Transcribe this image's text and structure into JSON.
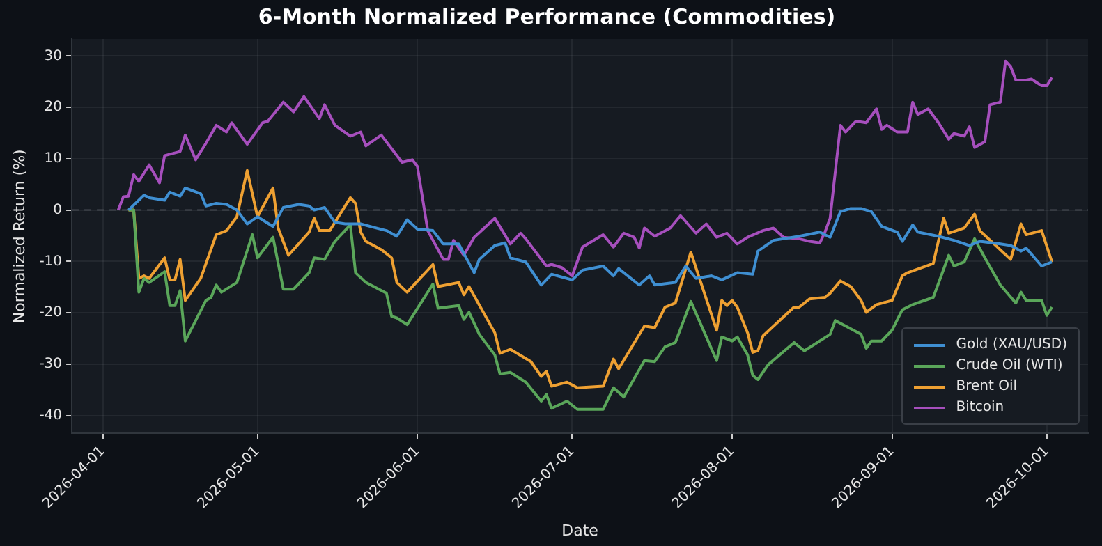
{
  "chart_data": {
    "type": "line",
    "title": "6-Month Normalized Performance (Commodities)",
    "xlabel": "Date",
    "ylabel": "Normalized Return (%)",
    "xlim": [
      "2026-03-26",
      "2026-10-09"
    ],
    "xticks": [
      "2026-04-01",
      "2026-05-01",
      "2026-06-01",
      "2026-07-01",
      "2026-08-01",
      "2026-09-01",
      "2026-10-01"
    ],
    "ylim": [
      -43.5,
      33.3
    ],
    "yticks": [
      -40,
      -30,
      -20,
      -10,
      0,
      10,
      20,
      30
    ],
    "grid": true,
    "legend": "bottom right",
    "ref_lines": [
      {
        "axis": "y",
        "value": 0,
        "color": "#4a4f57",
        "line_style": "dashed"
      }
    ],
    "series": [
      {
        "name": "Gold (XAU/USD)",
        "color": "#3f8fd2",
        "x": [
          "2026-04-06",
          "2026-04-09",
          "2026-04-10",
          "2026-04-13",
          "2026-04-14",
          "2026-04-16",
          "2026-04-17",
          "2026-04-20",
          "2026-04-21",
          "2026-04-23",
          "2026-04-25",
          "2026-04-27",
          "2026-04-29",
          "2026-05-01",
          "2026-05-04",
          "2026-05-06",
          "2026-05-09",
          "2026-05-11",
          "2026-05-12",
          "2026-05-14",
          "2026-05-16",
          "2026-05-18",
          "2026-05-21",
          "2026-05-24",
          "2026-05-26",
          "2026-05-28",
          "2026-05-30",
          "2026-06-01",
          "2026-06-04",
          "2026-06-06",
          "2026-06-09",
          "2026-06-12",
          "2026-06-13",
          "2026-06-16",
          "2026-06-18",
          "2026-06-19",
          "2026-06-22",
          "2026-06-25",
          "2026-06-27",
          "2026-07-01",
          "2026-07-03",
          "2026-07-07",
          "2026-07-09",
          "2026-07-10",
          "2026-07-14",
          "2026-07-16",
          "2026-07-17",
          "2026-07-21",
          "2026-07-23",
          "2026-07-25",
          "2026-07-28",
          "2026-07-30",
          "2026-08-02",
          "2026-08-05",
          "2026-08-06",
          "2026-08-09",
          "2026-08-14",
          "2026-08-18",
          "2026-08-20",
          "2026-08-22",
          "2026-08-24",
          "2026-08-26",
          "2026-08-28",
          "2026-08-30",
          "2026-09-02",
          "2026-09-03",
          "2026-09-05",
          "2026-09-06",
          "2026-09-10",
          "2026-09-13",
          "2026-09-16",
          "2026-09-18",
          "2026-09-22",
          "2026-09-24",
          "2026-09-26",
          "2026-09-27",
          "2026-09-30",
          "2026-10-02"
        ],
        "values": [
          0,
          2.9,
          2.4,
          1.9,
          3.5,
          2.7,
          4.3,
          3.2,
          0.8,
          1.3,
          1.1,
          0,
          -2.7,
          -1.3,
          -3.2,
          0.5,
          1.1,
          0.8,
          0,
          0.5,
          -2.4,
          -2.7,
          -2.7,
          -3.5,
          -4,
          -5.1,
          -1.9,
          -3.7,
          -4,
          -6.6,
          -6.6,
          -12.2,
          -9.6,
          -6.9,
          -6.4,
          -9.3,
          -10.1,
          -14.6,
          -12.5,
          -13.6,
          -11.7,
          -10.9,
          -12.8,
          -11.4,
          -14.6,
          -12.8,
          -14.6,
          -14.1,
          -10.9,
          -13.3,
          -12.8,
          -13.6,
          -12.2,
          -12.5,
          -8,
          -5.9,
          -5.1,
          -4.3,
          -5.3,
          -0.3,
          0.3,
          0.3,
          -0.3,
          -3.2,
          -4.3,
          -6.1,
          -2.9,
          -4.3,
          -5.1,
          -5.9,
          -6.9,
          -6.1,
          -6.6,
          -6.9,
          -8,
          -7.4,
          -10.9,
          -10.1
        ]
      },
      {
        "name": "Crude Oil (WTI)",
        "color": "#5aa65a",
        "x": [
          "2026-04-06",
          "2026-04-07",
          "2026-04-08",
          "2026-04-09",
          "2026-04-10",
          "2026-04-13",
          "2026-04-14",
          "2026-04-15",
          "2026-04-16",
          "2026-04-17",
          "2026-04-21",
          "2026-04-22",
          "2026-04-23",
          "2026-04-24",
          "2026-04-27",
          "2026-04-30",
          "2026-05-01",
          "2026-05-04",
          "2026-05-06",
          "2026-05-08",
          "2026-05-11",
          "2026-05-12",
          "2026-05-14",
          "2026-05-16",
          "2026-05-19",
          "2026-05-20",
          "2026-05-22",
          "2026-05-26",
          "2026-05-27",
          "2026-05-28",
          "2026-05-30",
          "2026-06-04",
          "2026-06-05",
          "2026-06-09",
          "2026-06-10",
          "2026-06-11",
          "2026-06-13",
          "2026-06-16",
          "2026-06-17",
          "2026-06-19",
          "2026-06-22",
          "2026-06-25",
          "2026-06-26",
          "2026-06-27",
          "2026-06-30",
          "2026-07-02",
          "2026-07-07",
          "2026-07-09",
          "2026-07-11",
          "2026-07-15",
          "2026-07-17",
          "2026-07-19",
          "2026-07-21",
          "2026-07-24",
          "2026-07-29",
          "2026-07-30",
          "2026-08-01",
          "2026-08-02",
          "2026-08-04",
          "2026-08-05",
          "2026-08-06",
          "2026-08-08",
          "2026-08-13",
          "2026-08-15",
          "2026-08-20",
          "2026-08-21",
          "2026-08-26",
          "2026-08-27",
          "2026-08-28",
          "2026-08-30",
          "2026-09-01",
          "2026-09-03",
          "2026-09-05",
          "2026-09-09",
          "2026-09-12",
          "2026-09-13",
          "2026-09-15",
          "2026-09-17",
          "2026-09-19",
          "2026-09-22",
          "2026-09-25",
          "2026-09-26",
          "2026-09-27",
          "2026-09-30",
          "2026-10-01",
          "2026-10-02"
        ],
        "values": [
          0,
          0,
          -16,
          -13.3,
          -14.1,
          -12,
          -18.6,
          -18.6,
          -15.7,
          -25.5,
          -17.6,
          -17,
          -14.6,
          -16,
          -14.1,
          -4.8,
          -9.3,
          -5.3,
          -15.4,
          -15.4,
          -12.2,
          -9.3,
          -9.6,
          -6.1,
          -2.9,
          -12.2,
          -14.1,
          -16.2,
          -20.7,
          -21,
          -22.3,
          -14.4,
          -19.1,
          -18.6,
          -21.3,
          -19.9,
          -24.2,
          -28.2,
          -31.9,
          -31.6,
          -33.5,
          -37.2,
          -35.9,
          -38.6,
          -37.2,
          -38.8,
          -38.8,
          -34.6,
          -36.4,
          -29.3,
          -29.5,
          -26.6,
          -25.8,
          -17.8,
          -29.3,
          -24.7,
          -25.5,
          -24.7,
          -28.2,
          -32.2,
          -33,
          -30.1,
          -25.8,
          -27.4,
          -24.2,
          -21.5,
          -24.2,
          -26.9,
          -25.5,
          -25.5,
          -23.4,
          -19.4,
          -18.4,
          -17,
          -8.8,
          -10.9,
          -10.1,
          -5.6,
          -9.3,
          -14.6,
          -18.1,
          -16,
          -17.6,
          -17.6,
          -20.5,
          -18.9
        ]
      },
      {
        "name": "Brent Oil",
        "color": "#eea032",
        "x": [
          "2026-04-06",
          "2026-04-07",
          "2026-04-08",
          "2026-04-09",
          "2026-04-10",
          "2026-04-13",
          "2026-04-14",
          "2026-04-15",
          "2026-04-16",
          "2026-04-17",
          "2026-04-20",
          "2026-04-23",
          "2026-04-25",
          "2026-04-27",
          "2026-04-29",
          "2026-05-01",
          "2026-05-04",
          "2026-05-05",
          "2026-05-07",
          "2026-05-11",
          "2026-05-12",
          "2026-05-13",
          "2026-05-15",
          "2026-05-19",
          "2026-05-20",
          "2026-05-21",
          "2026-05-22",
          "2026-05-25",
          "2026-05-27",
          "2026-05-28",
          "2026-05-30",
          "2026-06-04",
          "2026-06-05",
          "2026-06-09",
          "2026-06-10",
          "2026-06-11",
          "2026-06-16",
          "2026-06-17",
          "2026-06-19",
          "2026-06-23",
          "2026-06-25",
          "2026-06-26",
          "2026-06-27",
          "2026-06-30",
          "2026-07-02",
          "2026-07-07",
          "2026-07-09",
          "2026-07-10",
          "2026-07-15",
          "2026-07-17",
          "2026-07-19",
          "2026-07-21",
          "2026-07-24",
          "2026-07-29",
          "2026-07-30",
          "2026-07-31",
          "2026-08-01",
          "2026-08-02",
          "2026-08-04",
          "2026-08-05",
          "2026-08-06",
          "2026-08-07",
          "2026-08-13",
          "2026-08-14",
          "2026-08-16",
          "2026-08-19",
          "2026-08-20",
          "2026-08-22",
          "2026-08-24",
          "2026-08-26",
          "2026-08-27",
          "2026-08-29",
          "2026-09-01",
          "2026-09-03",
          "2026-09-04",
          "2026-09-09",
          "2026-09-11",
          "2026-09-12",
          "2026-09-15",
          "2026-09-17",
          "2026-09-18",
          "2026-09-24",
          "2026-09-26",
          "2026-09-27",
          "2026-09-30",
          "2026-10-02"
        ],
        "values": [
          0,
          0,
          -13.3,
          -12.8,
          -13.3,
          -9.3,
          -13.6,
          -13.6,
          -9.6,
          -17.6,
          -13.3,
          -4.8,
          -4,
          -1.3,
          7.7,
          -1.3,
          4.3,
          -3.5,
          -8.8,
          -4.3,
          -1.6,
          -4,
          -4,
          2.4,
          1.3,
          -4.3,
          -6.1,
          -7.7,
          -9.3,
          -14.1,
          -16,
          -10.6,
          -14.9,
          -14.1,
          -16.5,
          -14.9,
          -23.9,
          -27.9,
          -27.1,
          -29.5,
          -32.4,
          -31.4,
          -34.3,
          -33.5,
          -34.6,
          -34.3,
          -29,
          -30.9,
          -22.6,
          -22.9,
          -18.9,
          -18.1,
          -8.2,
          -23.4,
          -17.6,
          -18.6,
          -17.6,
          -18.9,
          -23.9,
          -27.7,
          -27.4,
          -24.5,
          -18.9,
          -18.9,
          -17.3,
          -17,
          -16.2,
          -13.8,
          -14.9,
          -17.6,
          -19.9,
          -18.4,
          -17.6,
          -12.8,
          -12.2,
          -10.4,
          -1.6,
          -4.5,
          -3.5,
          -0.8,
          -4,
          -9.6,
          -2.7,
          -4.8,
          -4,
          -10.1
        ]
      },
      {
        "name": "Bitcoin",
        "color": "#a64fbd",
        "x": [
          "2026-04-04",
          "2026-04-05",
          "2026-04-06",
          "2026-04-07",
          "2026-04-08",
          "2026-04-10",
          "2026-04-12",
          "2026-04-13",
          "2026-04-16",
          "2026-04-17",
          "2026-04-19",
          "2026-04-21",
          "2026-04-23",
          "2026-04-25",
          "2026-04-26",
          "2026-04-29",
          "2026-05-02",
          "2026-05-03",
          "2026-05-06",
          "2026-05-08",
          "2026-05-10",
          "2026-05-13",
          "2026-05-14",
          "2026-05-16",
          "2026-05-19",
          "2026-05-21",
          "2026-05-22",
          "2026-05-25",
          "2026-05-29",
          "2026-05-31",
          "2026-06-01",
          "2026-06-03",
          "2026-06-06",
          "2026-06-07",
          "2026-06-08",
          "2026-06-10",
          "2026-06-12",
          "2026-06-16",
          "2026-06-19",
          "2026-06-21",
          "2026-06-22",
          "2026-06-26",
          "2026-06-27",
          "2026-06-29",
          "2026-07-01",
          "2026-07-03",
          "2026-07-07",
          "2026-07-09",
          "2026-07-11",
          "2026-07-13",
          "2026-07-14",
          "2026-07-15",
          "2026-07-17",
          "2026-07-20",
          "2026-07-22",
          "2026-07-25",
          "2026-07-27",
          "2026-07-29",
          "2026-07-31",
          "2026-08-02",
          "2026-08-04",
          "2026-08-07",
          "2026-08-09",
          "2026-08-11",
          "2026-08-14",
          "2026-08-16",
          "2026-08-18",
          "2026-08-19",
          "2026-08-20",
          "2026-08-22",
          "2026-08-23",
          "2026-08-25",
          "2026-08-27",
          "2026-08-29",
          "2026-08-30",
          "2026-08-31",
          "2026-09-02",
          "2026-09-04",
          "2026-09-05",
          "2026-09-06",
          "2026-09-08",
          "2026-09-10",
          "2026-09-12",
          "2026-09-13",
          "2026-09-15",
          "2026-09-16",
          "2026-09-17",
          "2026-09-19",
          "2026-09-20",
          "2026-09-22",
          "2026-09-23",
          "2026-09-24",
          "2026-09-25",
          "2026-09-27",
          "2026-09-28",
          "2026-09-30",
          "2026-10-01",
          "2026-10-02"
        ],
        "values": [
          0,
          2.6,
          2.7,
          6.9,
          5.6,
          8.8,
          5.3,
          10.6,
          11.4,
          14.6,
          9.8,
          13,
          16.5,
          15.2,
          17,
          12.8,
          17,
          17.3,
          21,
          19.1,
          22.1,
          17.8,
          20.5,
          16.5,
          14.4,
          15.2,
          12.5,
          14.6,
          9.3,
          9.8,
          8.5,
          -4,
          -9.6,
          -9.6,
          -5.9,
          -8.8,
          -5.3,
          -1.6,
          -6.6,
          -4.5,
          -5.6,
          -10.9,
          -10.6,
          -11.2,
          -12.8,
          -7.2,
          -4.8,
          -7.2,
          -4.5,
          -5.3,
          -7.4,
          -3.5,
          -5.1,
          -3.5,
          -1.1,
          -4.5,
          -2.7,
          -5.3,
          -4.5,
          -6.6,
          -5.3,
          -4,
          -3.5,
          -5.3,
          -5.6,
          -6.1,
          -6.4,
          -4.3,
          -1.6,
          16.5,
          15.2,
          17.3,
          17,
          19.7,
          15.7,
          16.5,
          15.2,
          15.2,
          21,
          18.6,
          19.7,
          17,
          13.8,
          14.9,
          14.4,
          16.2,
          12.2,
          13.3,
          20.5,
          21,
          29,
          27.9,
          25.3,
          25.3,
          25.5,
          24.2,
          24.2,
          25.8
        ]
      }
    ]
  }
}
